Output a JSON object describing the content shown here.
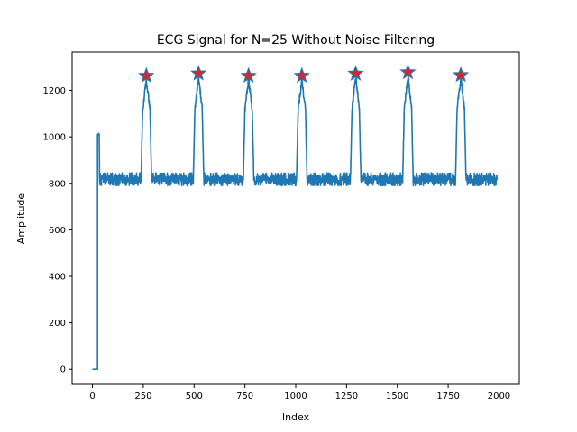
{
  "chart_data": {
    "type": "line",
    "title": "ECG Signal for N=25 Without Noise Filtering",
    "xlabel": "Index",
    "ylabel": "Amplitude",
    "xlim": [
      -100,
      2100
    ],
    "ylim": [
      -65,
      1365
    ],
    "xticks": [
      0,
      250,
      500,
      750,
      1000,
      1250,
      1500,
      1750,
      2000
    ],
    "yticks": [
      0,
      200,
      400,
      600,
      800,
      1000,
      1200
    ],
    "grid": false,
    "colors": {
      "line": "#1f77b4",
      "marker_fill": "#d62728",
      "marker_edge": "#1f77b4"
    },
    "series": [
      {
        "type": "line",
        "baseline_start": {
          "x": 0,
          "y": 0
        },
        "step_index": 25,
        "initial_spike": 1010,
        "baseline_band": [
          790,
          845
        ],
        "x_end": 1990,
        "peak_width": 50,
        "peak_x": [
          265,
          522,
          768,
          1030,
          1295,
          1552,
          1812
        ],
        "peak_y": [
          1263,
          1273,
          1263,
          1263,
          1272,
          1278,
          1266
        ]
      },
      {
        "type": "scatter",
        "marker": "star",
        "x": [
          265,
          522,
          768,
          1030,
          1295,
          1552,
          1812
        ],
        "y": [
          1263,
          1273,
          1263,
          1263,
          1272,
          1278,
          1266
        ]
      }
    ]
  }
}
